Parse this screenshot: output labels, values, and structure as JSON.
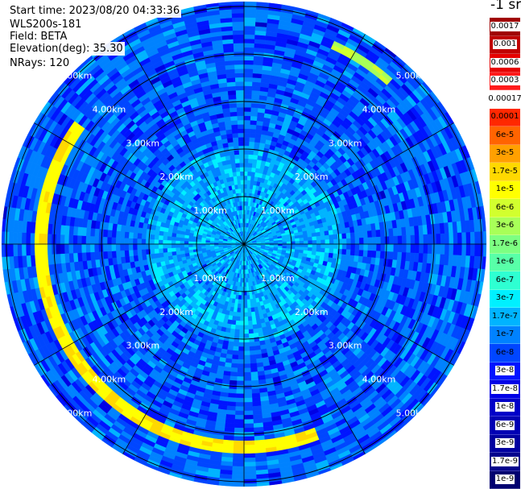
{
  "header": {
    "start_time_label": "Start time:",
    "start_time": "2023/08/20 04:33:36",
    "instrument": "WLS200s-181",
    "field_label": "Field:",
    "field": "BETA",
    "elevation_label": "Elevation(deg):",
    "elevation": "35.30",
    "nrays_label": "NRays:",
    "nrays": "120"
  },
  "chart_data": {
    "type": "heatmap",
    "projection": "polar-ppi",
    "field": "BETA",
    "unit_label": "-1 sr",
    "range_rings_km": [
      1,
      2,
      3,
      4,
      5
    ],
    "ring_labels": [
      "1.00km",
      "2.00km",
      "3.00km",
      "4.00km",
      "5.00km"
    ],
    "max_range_km": 5.1,
    "spokes_deg": [
      0,
      30,
      60,
      90,
      120,
      150,
      180,
      210,
      240,
      270,
      300,
      330
    ],
    "nrays": 120,
    "features": [
      {
        "name": "elevated aerosol arc",
        "range_km": 4.3,
        "azimuth_start_deg": 160,
        "azimuth_end_deg": 305,
        "level": "1.7e-5"
      },
      {
        "name": "elevated aerosol arc",
        "range_km": 4.6,
        "azimuth_start_deg": 25,
        "azimuth_end_deg": 42,
        "level": "6e-6"
      }
    ],
    "colorbar": {
      "ticks": [
        "0.0017",
        "0.001",
        "0.0006",
        "0.0003",
        "0.00017",
        "0.0001",
        "6e-5",
        "3e-5",
        "1.7e-5",
        "1e-5",
        "6e-6",
        "3e-6",
        "1.7e-6",
        "1e-6",
        "6e-7",
        "3e-7",
        "1.7e-7",
        "1e-7",
        "6e-8",
        "3e-8",
        "1.7e-8",
        "1e-8",
        "6e-9",
        "3e-9",
        "1.7e-9",
        "1e-9"
      ],
      "colors": [
        "#a00000",
        "#c00000",
        "#e60000",
        "#ff1a1a",
        "#ffffff",
        "#ff2800",
        "#ff6400",
        "#ffa000",
        "#ffd800",
        "#ffff00",
        "#d2ff2e",
        "#a8ff58",
        "#7dff82",
        "#58ffa8",
        "#2effd2",
        "#00f0ff",
        "#00b4ff",
        "#0082ff",
        "#0046ff",
        "#0014ff",
        "#0000e6",
        "#0000c8",
        "#0000b4",
        "#0000a0",
        "#00008c",
        "#000070"
      ]
    }
  }
}
